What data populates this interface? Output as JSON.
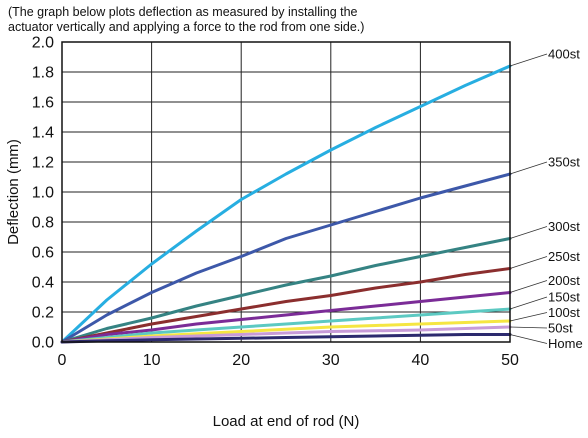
{
  "chart_data": {
    "type": "line",
    "subtitle_lines": [
      "(The graph below plots deflection as measured by installing the",
      "actuator vertically and applying a force to the rod from one side.)"
    ],
    "xlabel": "Load at end of rod (N)",
    "ylabel": "Deflection (mm)",
    "xlim": [
      0,
      50
    ],
    "ylim": [
      0,
      2.0
    ],
    "x_ticks": [
      "0",
      "10",
      "20",
      "30",
      "40",
      "50"
    ],
    "y_ticks": [
      "0.0",
      "0.2",
      "0.4",
      "0.6",
      "0.8",
      "1.0",
      "1.2",
      "1.4",
      "1.6",
      "1.8",
      "2.0"
    ],
    "grid": true,
    "legend": "right-side labels with leader lines",
    "series": [
      {
        "name": "400st",
        "color": "#27aee1",
        "x": [
          0,
          5,
          10,
          15,
          20,
          25,
          30,
          35,
          40,
          45,
          50
        ],
        "y": [
          0,
          0.28,
          0.52,
          0.74,
          0.95,
          1.12,
          1.28,
          1.43,
          1.57,
          1.71,
          1.84
        ]
      },
      {
        "name": "350st",
        "color": "#3d58a9",
        "x": [
          0,
          5,
          10,
          15,
          20,
          25,
          30,
          35,
          40,
          45,
          50
        ],
        "y": [
          0,
          0.18,
          0.33,
          0.46,
          0.57,
          0.69,
          0.78,
          0.87,
          0.96,
          1.04,
          1.12
        ]
      },
      {
        "name": "300st",
        "color": "#358383",
        "x": [
          0,
          5,
          10,
          15,
          20,
          25,
          30,
          35,
          40,
          45,
          50
        ],
        "y": [
          0,
          0.09,
          0.16,
          0.24,
          0.31,
          0.38,
          0.44,
          0.51,
          0.57,
          0.63,
          0.69
        ]
      },
      {
        "name": "250st",
        "color": "#8b2e2e",
        "x": [
          0,
          5,
          10,
          15,
          20,
          25,
          30,
          35,
          40,
          45,
          50
        ],
        "y": [
          0,
          0.06,
          0.12,
          0.17,
          0.22,
          0.27,
          0.31,
          0.36,
          0.4,
          0.45,
          0.49
        ]
      },
      {
        "name": "200st",
        "color": "#7b2c97",
        "x": [
          0,
          5,
          10,
          15,
          20,
          25,
          30,
          35,
          40,
          45,
          50
        ],
        "y": [
          0,
          0.05,
          0.08,
          0.12,
          0.15,
          0.18,
          0.21,
          0.24,
          0.27,
          0.3,
          0.33
        ]
      },
      {
        "name": "150st",
        "color": "#5cc9c2",
        "x": [
          0,
          5,
          10,
          15,
          20,
          25,
          30,
          35,
          40,
          45,
          50
        ],
        "y": [
          0,
          0.03,
          0.06,
          0.08,
          0.1,
          0.12,
          0.14,
          0.16,
          0.18,
          0.2,
          0.22
        ]
      },
      {
        "name": "100st",
        "color": "#f5e642",
        "x": [
          0,
          5,
          10,
          15,
          20,
          25,
          30,
          35,
          40,
          45,
          50
        ],
        "y": [
          0,
          0.02,
          0.04,
          0.055,
          0.07,
          0.085,
          0.1,
          0.11,
          0.12,
          0.13,
          0.14
        ]
      },
      {
        "name": "50st",
        "color": "#c79bd8",
        "x": [
          0,
          5,
          10,
          15,
          20,
          25,
          30,
          35,
          40,
          45,
          50
        ],
        "y": [
          0,
          0.015,
          0.03,
          0.04,
          0.05,
          0.06,
          0.07,
          0.075,
          0.08,
          0.09,
          0.1
        ]
      },
      {
        "name": "Home",
        "color": "#2c2a6e",
        "x": [
          0,
          5,
          10,
          15,
          20,
          25,
          30,
          35,
          40,
          45,
          50
        ],
        "y": [
          0,
          0.008,
          0.015,
          0.02,
          0.025,
          0.03,
          0.035,
          0.04,
          0.045,
          0.05,
          0.05
        ]
      }
    ]
  }
}
